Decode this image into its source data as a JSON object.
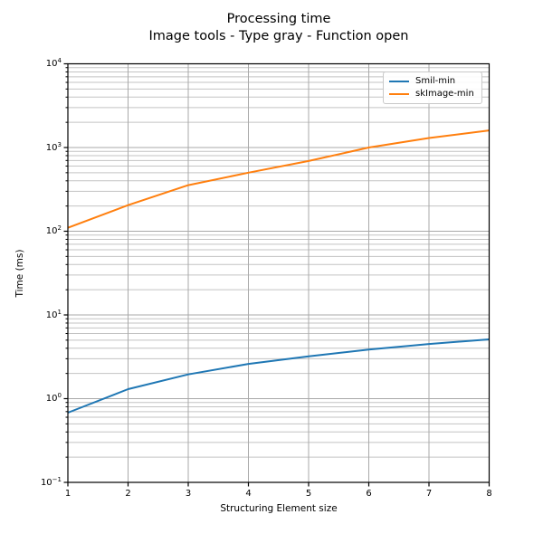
{
  "chart_data": {
    "type": "line",
    "title": "Processing time",
    "subtitle": "Image tools - Type gray - Function open",
    "xlabel": "Structuring Element size",
    "ylabel": "Time (ms)",
    "x_scale": "linear",
    "y_scale": "log",
    "xlim": [
      1,
      8
    ],
    "ylim": [
      0.1,
      10000
    ],
    "grid": "both",
    "legend_position": "upper right",
    "x": [
      1,
      2,
      3,
      4,
      5,
      6,
      7,
      8
    ],
    "series": [
      {
        "name": "Smil-min",
        "color": "#1f77b4",
        "values": [
          0.68,
          1.3,
          1.95,
          2.6,
          3.2,
          3.85,
          4.5,
          5.1
        ]
      },
      {
        "name": "skImage-min",
        "color": "#ff7f0e",
        "values": [
          110,
          205,
          355,
          500,
          690,
          1000,
          1300,
          1600
        ]
      }
    ],
    "x_ticks": [
      1,
      2,
      3,
      4,
      5,
      6,
      7,
      8
    ],
    "x_tick_labels": [
      "1",
      "2",
      "3",
      "4",
      "5",
      "6",
      "7",
      "8"
    ],
    "y_ticks": [
      {
        "base": "10",
        "exp": "4",
        "value": 10000,
        "label": "10^4"
      },
      {
        "base": "10",
        "exp": "3",
        "value": 1000,
        "label": "10^3"
      },
      {
        "base": "10",
        "exp": "2",
        "value": 100,
        "label": "10^2"
      },
      {
        "base": "10",
        "exp": "1",
        "value": 10,
        "label": "10^1"
      },
      {
        "base": "10",
        "exp": "0",
        "value": 1,
        "label": "10^0"
      },
      {
        "base": "10",
        "exp": "−1",
        "value": 0.1,
        "label": "10^-1"
      }
    ],
    "colors": {
      "grid_major": "#a9a9a9",
      "grid_minor": "#c3c3c3",
      "spine": "#000000",
      "background": "#ffffff"
    }
  }
}
